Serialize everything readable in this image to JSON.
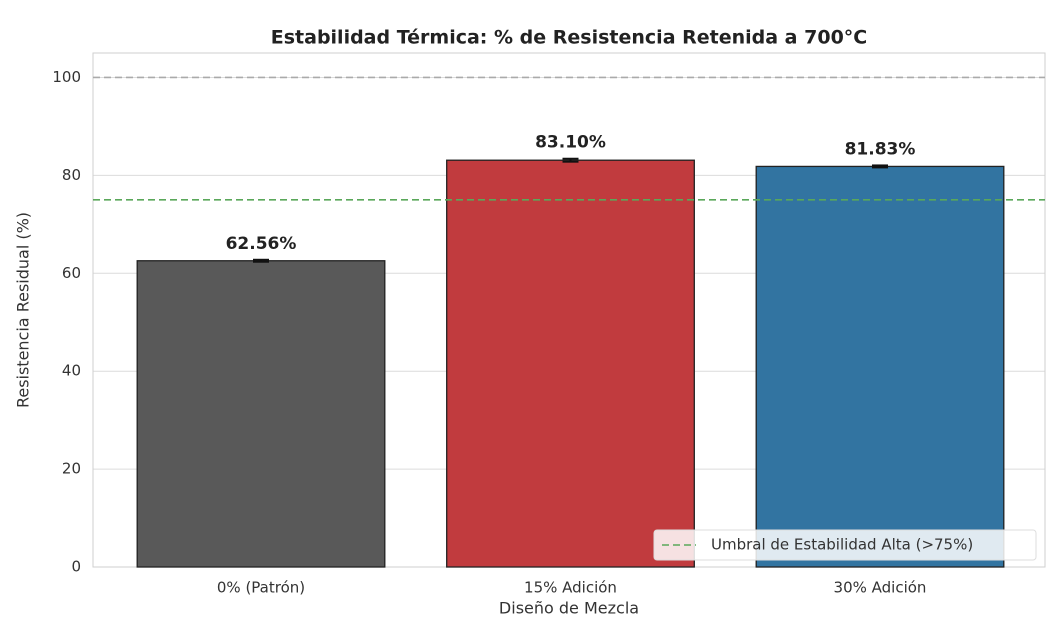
{
  "chart_data": {
    "type": "bar",
    "title": "Estabilidad Térmica: % de Resistencia Retenida a 700°C",
    "x_label": "Diseño de Mezcla",
    "y_label": "Resistencia Residual (%)",
    "categories": [
      "0% (Patrón)",
      "15% Adición",
      "30% Adición"
    ],
    "values": [
      62.56,
      83.1,
      81.83
    ],
    "value_labels": [
      "62.56%",
      "83.10%",
      "81.83%"
    ],
    "errors": [
      0.2,
      0.3,
      0.2
    ],
    "colors": [
      "#595959",
      "#c13b3e",
      "#3274a1"
    ],
    "ylim": [
      0,
      105
    ],
    "yticks": [
      0,
      20,
      40,
      60,
      80,
      100
    ],
    "grid": true,
    "hlines": [
      {
        "value": 100,
        "color": "#aaaaaa"
      },
      {
        "value": 75,
        "color": "#5aa85a",
        "label": "Umbral de Estabilidad Alta (>75%)"
      }
    ],
    "legend": "lower right"
  }
}
